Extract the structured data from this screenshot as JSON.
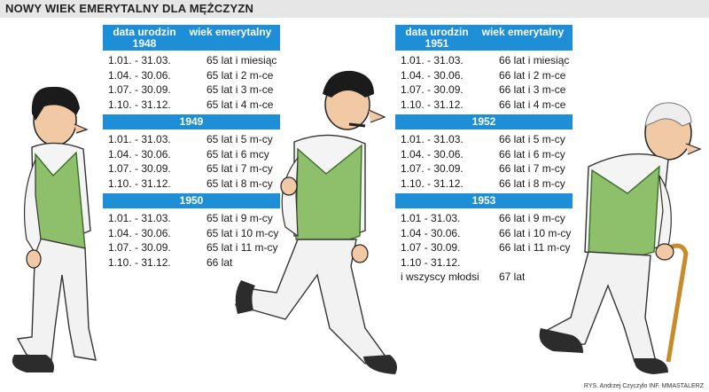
{
  "title": "NOWY WIEK EMERYTALNY DLA MĘŻCZYZN",
  "credit": "RYS. Andrzej Czyczyło INF. MMASTALERZ",
  "colors": {
    "header": "#1e8fd6",
    "title_bar": "#e6e6e6"
  },
  "left": {
    "col_birth": "data urodzin",
    "year_1948": "1948",
    "col_age": "wiek emerytalny",
    "y1948": [
      [
        "1.01. - 31.03.",
        "65 lat i miesiąc"
      ],
      [
        "1.04. - 30.06.",
        "65 lat i 2 m-ce"
      ],
      [
        "1.07. - 30.09.",
        "65 lat i 3 m-ce"
      ],
      [
        "1.10. - 31.12.",
        "65 lat i 4 m-ce"
      ]
    ],
    "year_1949": "1949",
    "y1949": [
      [
        "1.01. - 31.03.",
        "65 lat i 5 m-cy"
      ],
      [
        "1.04. - 30.06.",
        "65 lat i 6 mcy"
      ],
      [
        "1.07. - 30.09.",
        "65 lat i 7 m-cy"
      ],
      [
        "1.10. - 31.12.",
        "65 lat i 8 m-cy"
      ]
    ],
    "year_1950": "1950",
    "y1950": [
      [
        "1.01. - 31.03.",
        "65 lat i 9 m-cy"
      ],
      [
        "1.04. - 30.06.",
        "65 lat i 10 m-cy"
      ],
      [
        "1.07. - 30.09.",
        "65 lat i 11 m-cy"
      ],
      [
        "1.10. - 31.12.",
        "66 lat"
      ]
    ]
  },
  "right": {
    "col_birth": "data urodzin",
    "year_1951": "1951",
    "col_age": "wiek emerytalny",
    "y1951": [
      [
        "1.01. - 31.03.",
        "66 lat i miesiąc"
      ],
      [
        "1.04. - 30.06.",
        "66 lat i 2 m-ce"
      ],
      [
        "1.07. - 30.09.",
        "66 lat i 3 m-ce"
      ],
      [
        "1.10. - 31.12.",
        "66 lat i 4 m-ce"
      ]
    ],
    "year_1952": "1952",
    "y1952": [
      [
        "1.01. - 31.03.",
        "66 lat i 5 m-cy"
      ],
      [
        "1.04. - 30.06.",
        "66 lat i 6 m-cy"
      ],
      [
        "1.07. - 30.09.",
        "66 lat i 7 m-cy"
      ],
      [
        "1.10. - 31.12.",
        "66 lat i 8 m-cy"
      ]
    ],
    "year_1953": "1953",
    "y1953": [
      [
        "1.01 - 31.03.",
        "66 lat i 9 m-cy"
      ],
      [
        "1.04 - 30.06.",
        "66 lat i 10 m-cy"
      ],
      [
        "1.07 - 30.09.",
        "66 lat i 11 m-cy"
      ],
      [
        "1.10 - 31.12.",
        ""
      ],
      [
        "i wszyscy młodsi",
        "67 lat"
      ]
    ]
  },
  "figures": [
    "young-man-walking-illustration",
    "middle-aged-man-running-illustration",
    "elderly-man-with-cane-illustration"
  ]
}
